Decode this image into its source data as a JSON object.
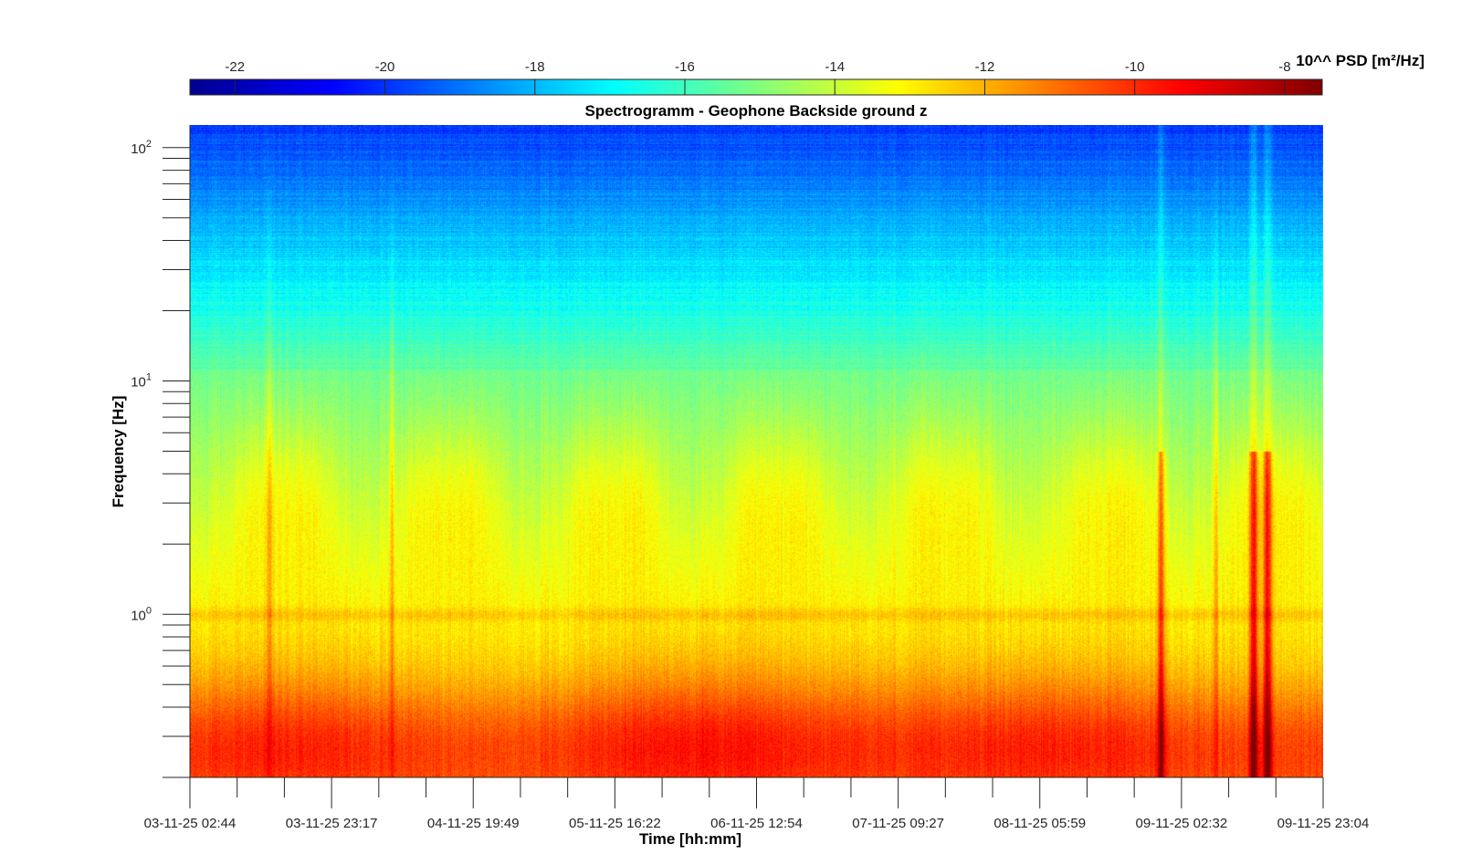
{
  "chart_data": {
    "type": "heatmap",
    "title": "Spectrogramm - Geophone Backside ground z",
    "xlabel": "Time [hh:mm]",
    "ylabel": "Frequency [Hz]",
    "yscale": "log",
    "ylim": [
      0.2,
      125
    ],
    "x_tick_labels": [
      "03-11-25 02:44",
      "03-11-25 23:17",
      "04-11-25 19:49",
      "05-11-25 16:22",
      "06-11-25 12:54",
      "07-11-25 09:27",
      "08-11-25 05:59",
      "09-11-25 02:32",
      "09-11-25 23:04"
    ],
    "y_tick_labels": [
      {
        "base": "10",
        "exp": "0",
        "value": 1
      },
      {
        "base": "10",
        "exp": "1",
        "value": 10
      },
      {
        "base": "10",
        "exp": "2",
        "value": 100
      }
    ],
    "colorbar": {
      "label": "10^^ PSD [m²/Hz]",
      "location": "top",
      "colormap": "jet",
      "range": [
        -22.6,
        -7.5
      ],
      "ticks": [
        "-22",
        "-20",
        "-18",
        "-16",
        "-14",
        "-12",
        "-10",
        "-8"
      ]
    },
    "features": {
      "time_range_hours": [
        0,
        164.33
      ],
      "broadband_bursts_hours": [
        11.5,
        29.2,
        148.7
      ],
      "strong_events_hours": [
        140.8,
        154.2,
        156.2
      ]
    },
    "grid": false
  }
}
